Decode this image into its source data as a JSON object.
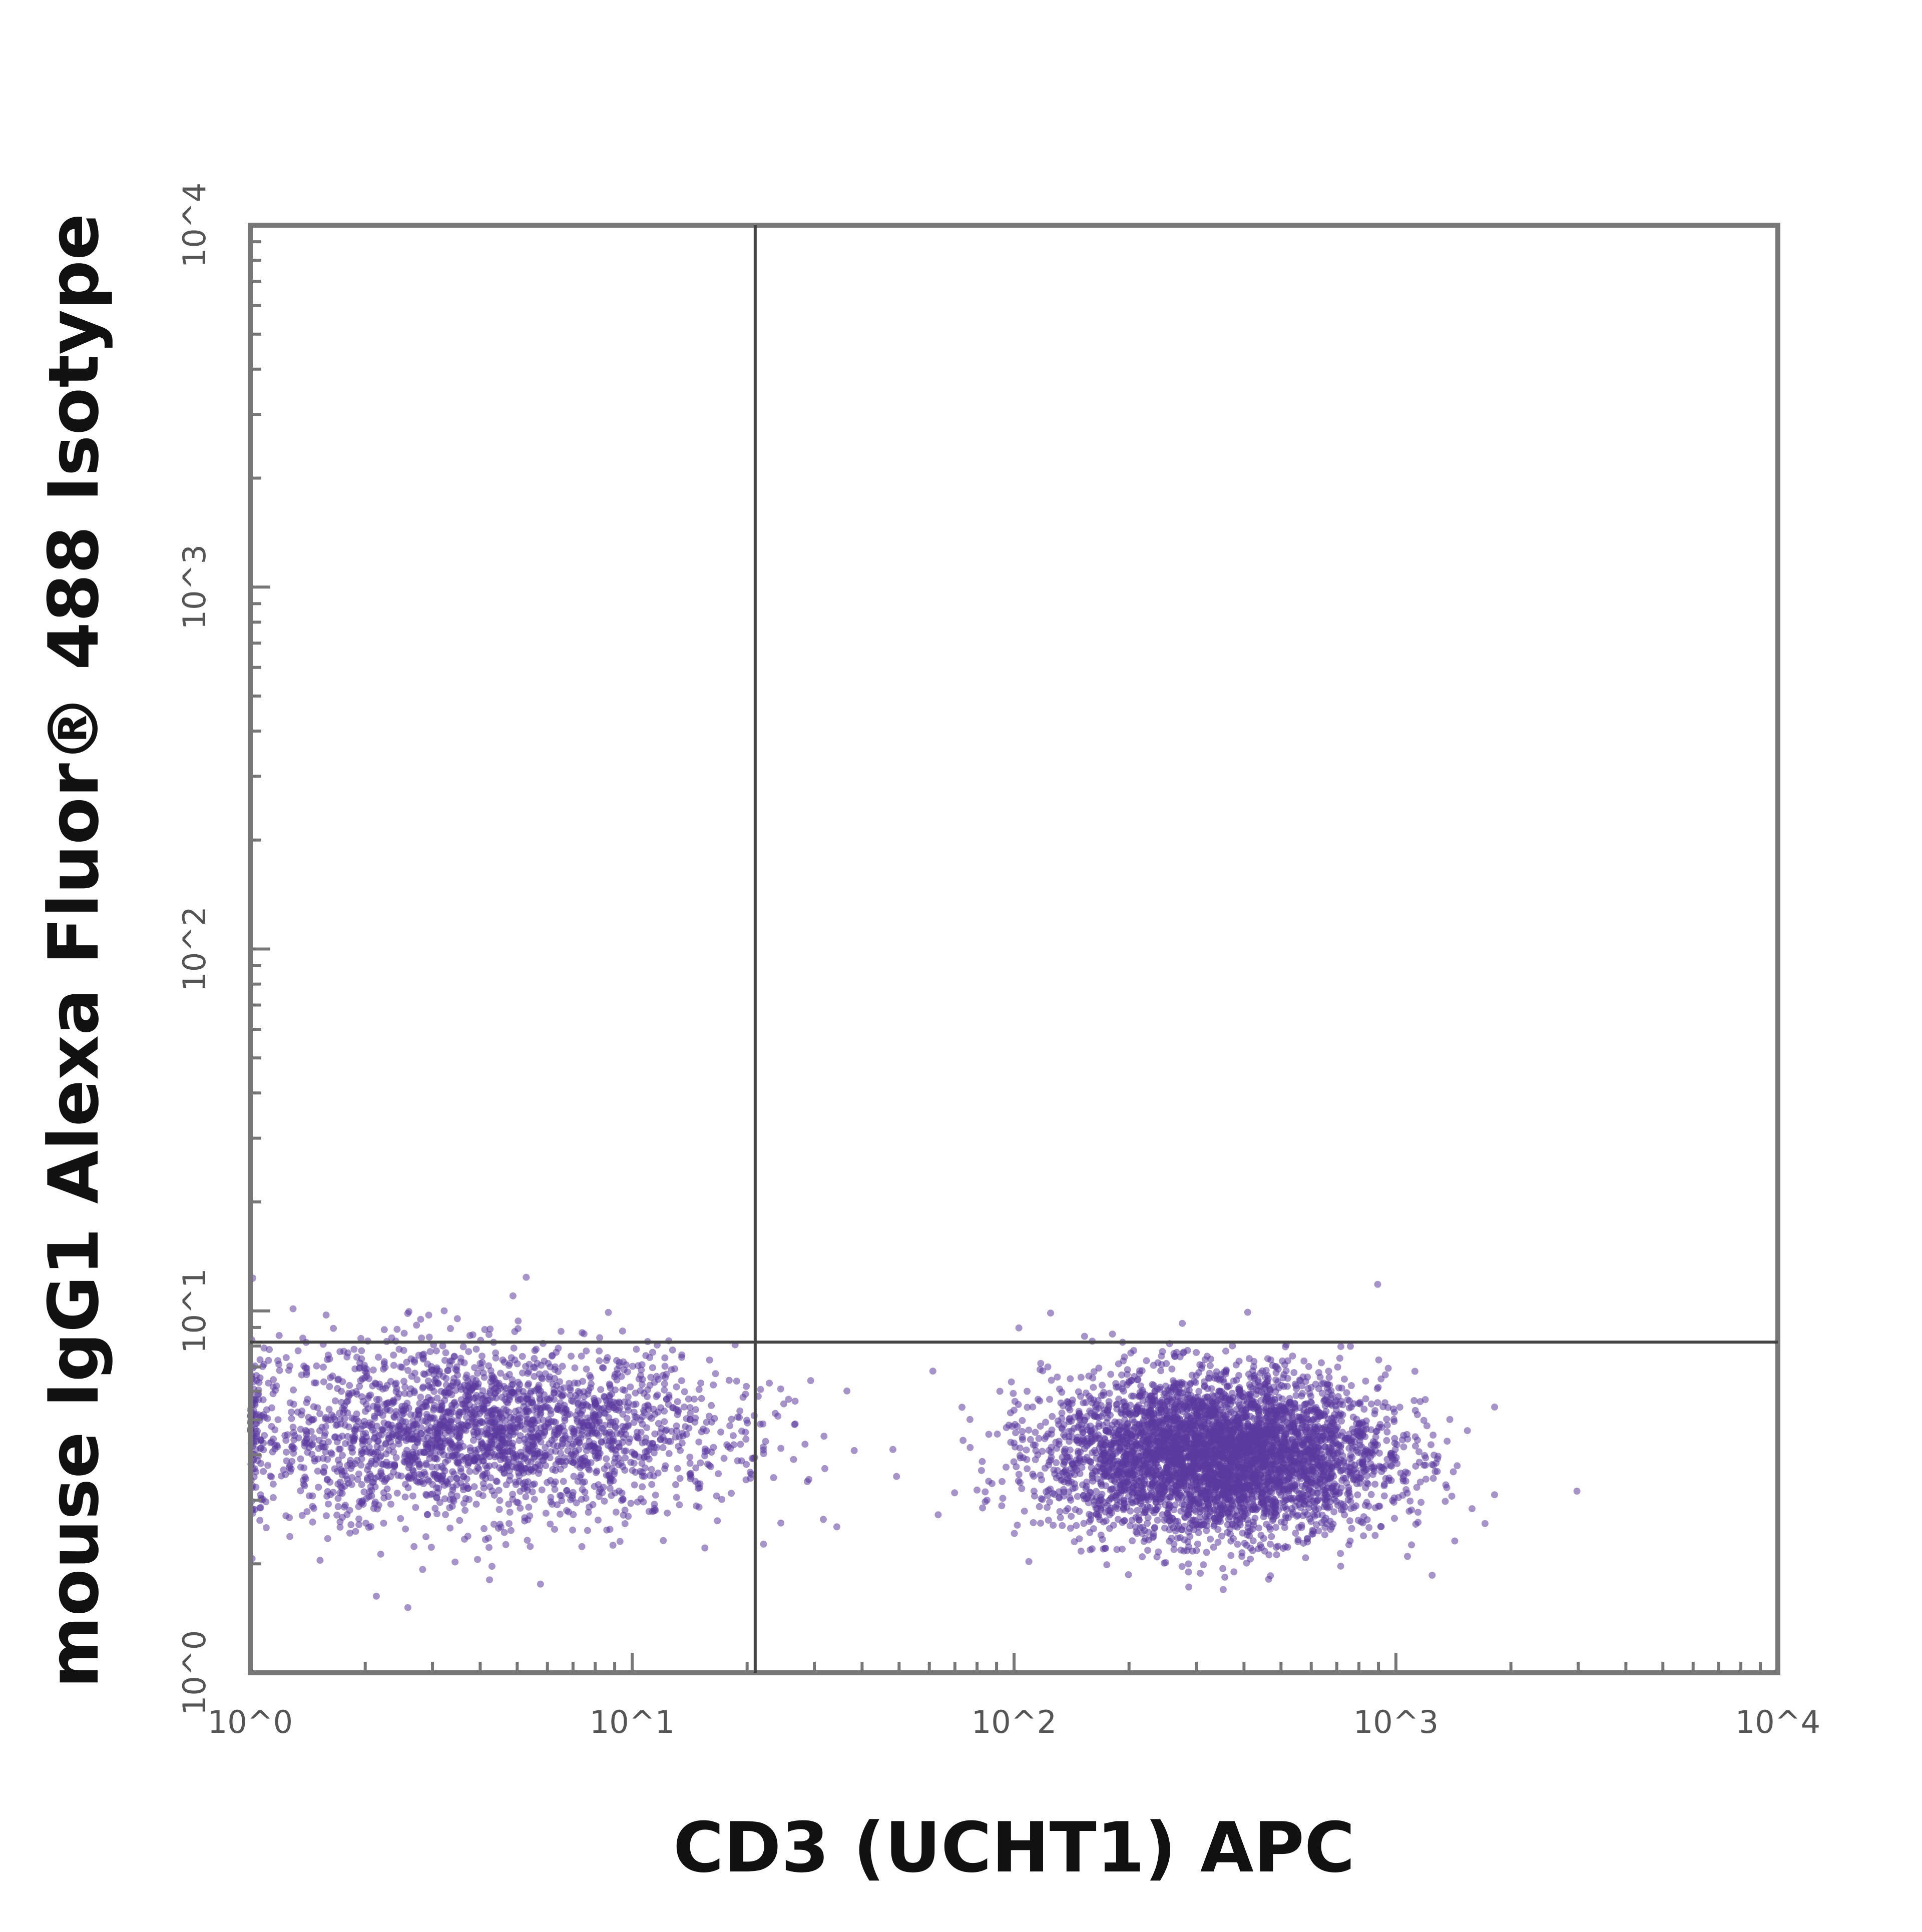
{
  "chart_data": {
    "type": "scatter",
    "title": "",
    "xlabel": "CD3 (UCHT1) APC",
    "ylabel": "mouse IgG1 Alexa Fluor® 488 Isotype",
    "xscale": "log",
    "yscale": "log",
    "xlim": [
      1,
      10000
    ],
    "ylim": [
      1,
      10000
    ],
    "x_ticks": [
      1,
      10,
      100,
      1000,
      10000
    ],
    "y_ticks": [
      1,
      10,
      100,
      1000,
      10000
    ],
    "x_tick_labels": [
      "10^0",
      "10^1",
      "10^2",
      "10^3",
      "10^4"
    ],
    "y_tick_labels": [
      "10^0",
      "10^1",
      "10^2",
      "10^3",
      "10^4"
    ],
    "grid": false,
    "point_color": "#5b3a9e",
    "quadrant_gates": {
      "x": 21,
      "y": 8.2
    },
    "populations": [
      {
        "description": "CD3 negative",
        "x_center": 4,
        "y_center": 4.6,
        "log_spread_x": 0.33,
        "log_spread_y": 0.12,
        "relative_density": 0.35
      },
      {
        "description": "CD3 positive",
        "x_center": 340,
        "y_center": 4.0,
        "log_spread_x": 0.22,
        "log_spread_y": 0.11,
        "relative_density": 0.65
      }
    ]
  }
}
